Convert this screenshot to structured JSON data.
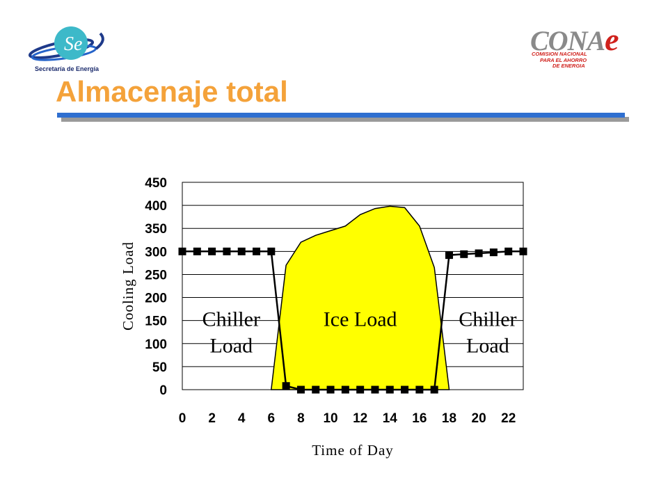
{
  "header": {
    "title": "Almacenaje total",
    "logo_left_text": "Secretaría de Energía",
    "logo_right_word": "CONA",
    "logo_right_word_e": "e",
    "logo_right_sub": [
      "COMISION NACIONAL",
      "PARA EL AHORRO",
      "DE ENERGIA"
    ]
  },
  "colors": {
    "title": "#f4a23a",
    "rule": "#2f6fd0",
    "area": "#ffff00",
    "line": "#000000"
  },
  "chart_data": {
    "type": "area",
    "xlabel": "Time of Day",
    "ylabel": "Cooling Load",
    "xlim": [
      0,
      23
    ],
    "ylim": [
      0,
      450
    ],
    "x_ticks": [
      0,
      2,
      4,
      6,
      8,
      10,
      12,
      14,
      16,
      18,
      20,
      22
    ],
    "y_ticks": [
      0,
      50,
      100,
      150,
      200,
      250,
      300,
      350,
      400,
      450
    ],
    "grid": "horizontal",
    "series": [
      {
        "kind": "area",
        "x": [
          6,
          7,
          8,
          9,
          10,
          11,
          12,
          13,
          14,
          15,
          16,
          17,
          18
        ],
        "values": [
          0,
          270,
          320,
          335,
          345,
          355,
          380,
          393,
          398,
          395,
          355,
          265,
          0
        ]
      },
      {
        "kind": "line",
        "x": [
          0,
          1,
          2,
          3,
          4,
          5,
          6,
          7,
          8,
          9,
          10,
          11,
          12,
          13,
          14,
          15,
          16,
          17,
          18,
          19,
          20,
          21,
          22,
          23
        ],
        "values": [
          300,
          300,
          300,
          300,
          300,
          300,
          300,
          8,
          0,
          0,
          0,
          0,
          0,
          0,
          0,
          0,
          0,
          0,
          292,
          294,
          296,
          298,
          300,
          300
        ]
      }
    ],
    "annotations": [
      {
        "lines": [
          "Chiller",
          "Load"
        ],
        "x": 3.3,
        "y": 150
      },
      {
        "lines": [
          "Ice Load"
        ],
        "x": 12,
        "y": 150
      },
      {
        "lines": [
          "Chiller",
          "Load"
        ],
        "x": 20.6,
        "y": 150
      }
    ]
  }
}
